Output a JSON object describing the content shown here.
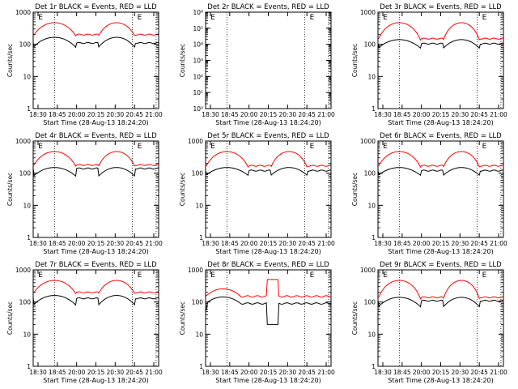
{
  "chart_data": [
    {
      "type": "line",
      "title": "Det 1r BLACK = Events, RED = LLD",
      "xlabel": "Start Time (28-Aug-13 18:24:20)",
      "ylabel": "Counts/sec",
      "ylim": [
        1,
        1000
      ],
      "ytick_labels": [
        "1",
        "10",
        "100",
        "1000"
      ],
      "xtick_labels": [
        "18:30",
        "18:45",
        "20:00",
        "20:15",
        "20:30",
        "20:45",
        "21:00"
      ],
      "flag_label": "E",
      "flags": [
        {
          "x": 0.04,
          "label": "E"
        },
        {
          "x": 0.83,
          "label": "E"
        }
      ],
      "dotted_lines_x": [
        0.17,
        0.79,
        0.98
      ],
      "series": [
        {
          "name": "Events",
          "color": "#000000",
          "pattern": "arc",
          "base": 110,
          "peak": 165,
          "low": 80
        },
        {
          "name": "LLD",
          "color": "#ff0000",
          "pattern": "arc",
          "base": 200,
          "peak": 470,
          "low": 180
        }
      ]
    },
    {
      "type": "line",
      "title": "Det 2r BLACK = Events, RED = LLD",
      "xlabel": "Start Time (28-Aug-13 18:24:20)",
      "ylabel": "Counts/sec",
      "ylim": [
        1,
        1000000
      ],
      "ytick_labels": [
        "10⁰",
        "10¹",
        "10²",
        "10³",
        "10⁴",
        "10⁵",
        "10⁶"
      ],
      "xtick_labels": [
        "18:30",
        "18:45",
        "20:00",
        "20:15",
        "20:30",
        "20:45",
        "21:00"
      ],
      "flag_label": "E",
      "flags": [
        {
          "x": 0.04,
          "label": "E"
        },
        {
          "x": 0.83,
          "label": "E"
        }
      ],
      "dotted_lines_x": [
        0.17,
        0.79,
        0.98
      ],
      "series": []
    },
    {
      "type": "line",
      "title": "Det 3r BLACK = Events, RED = LLD",
      "xlabel": "Start Time (28-Aug-13 18:24:20)",
      "ylabel": "Counts/sec",
      "ylim": [
        1,
        1000
      ],
      "ytick_labels": [
        "1",
        "10",
        "100",
        "1000"
      ],
      "xtick_labels": [
        "18:30",
        "18:45",
        "20:00",
        "20:15",
        "20:30",
        "20:45",
        "21:00"
      ],
      "flag_label": "E",
      "flags": [
        {
          "x": 0.04,
          "label": "E"
        },
        {
          "x": 0.83,
          "label": "E"
        }
      ],
      "dotted_lines_x": [
        0.17,
        0.79,
        0.98
      ],
      "series": [
        {
          "name": "Events",
          "color": "#000000",
          "pattern": "arc",
          "base": 105,
          "peak": 140,
          "low": 75
        },
        {
          "name": "LLD",
          "color": "#ff0000",
          "pattern": "arc",
          "base": 150,
          "peak": 470,
          "low": 130
        }
      ]
    },
    {
      "type": "line",
      "title": "Det 4r BLACK = Events, RED = LLD",
      "xlabel": "Start Time (28-Aug-13 18:24:20)",
      "ylabel": "Counts/sec",
      "ylim": [
        1,
        1000
      ],
      "ytick_labels": [
        "1",
        "10",
        "100",
        "1000"
      ],
      "xtick_labels": [
        "18:30",
        "18:45",
        "20:00",
        "20:15",
        "20:30",
        "20:45",
        "21:00"
      ],
      "flag_label": "E",
      "flags": [
        {
          "x": 0.04,
          "label": "E"
        },
        {
          "x": 0.83,
          "label": "E"
        }
      ],
      "dotted_lines_x": [
        0.17,
        0.79,
        0.98
      ],
      "series": [
        {
          "name": "Events",
          "color": "#000000",
          "pattern": "arc",
          "base": 140,
          "peak": 150,
          "low": 80
        },
        {
          "name": "LLD",
          "color": "#ff0000",
          "pattern": "arc",
          "base": 180,
          "peak": 470,
          "low": 160
        }
      ]
    },
    {
      "type": "line",
      "title": "Det 5r BLACK = Events, RED = LLD",
      "xlabel": "Start Time (28-Aug-13 18:24:20)",
      "ylabel": "Counts/sec",
      "ylim": [
        1,
        1000
      ],
      "ytick_labels": [
        "1",
        "10",
        "100",
        "1000"
      ],
      "xtick_labels": [
        "18:30",
        "18:45",
        "20:00",
        "20:15",
        "20:30",
        "20:45",
        "21:00"
      ],
      "flag_label": "E",
      "flags": [
        {
          "x": 0.04,
          "label": "E"
        },
        {
          "x": 0.83,
          "label": "E"
        }
      ],
      "dotted_lines_x": [
        0.17,
        0.79,
        0.98
      ],
      "series": [
        {
          "name": "Events",
          "color": "#000000",
          "pattern": "arc",
          "base": 120,
          "peak": 150,
          "low": 85
        },
        {
          "name": "LLD",
          "color": "#ff0000",
          "pattern": "arc",
          "base": 170,
          "peak": 470,
          "low": 150
        }
      ]
    },
    {
      "type": "line",
      "title": "Det 6r BLACK = Events, RED = LLD",
      "xlabel": "Start Time (28-Aug-13 18:24:20)",
      "ylabel": "Counts/sec",
      "ylim": [
        1,
        1000
      ],
      "ytick_labels": [
        "1",
        "10",
        "100",
        "1000"
      ],
      "xtick_labels": [
        "18:30",
        "18:45",
        "20:00",
        "20:15",
        "20:30",
        "20:45",
        "21:00"
      ],
      "flag_label": "E",
      "flags": [
        {
          "x": 0.04,
          "label": "E"
        },
        {
          "x": 0.83,
          "label": "E"
        }
      ],
      "dotted_lines_x": [
        0.17,
        0.79,
        0.98
      ],
      "series": [
        {
          "name": "Events",
          "color": "#000000",
          "pattern": "arc",
          "base": 120,
          "peak": 150,
          "low": 85
        },
        {
          "name": "LLD",
          "color": "#ff0000",
          "pattern": "arc",
          "base": 170,
          "peak": 470,
          "low": 150
        }
      ]
    },
    {
      "type": "line",
      "title": "Det 7r BLACK = Events, RED = LLD",
      "xlabel": "Start Time (28-Aug-13 18:24:20)",
      "ylabel": "Counts/sec",
      "ylim": [
        1,
        1000
      ],
      "ytick_labels": [
        "1",
        "10",
        "100",
        "1000"
      ],
      "xtick_labels": [
        "18:30",
        "18:45",
        "20:00",
        "20:15",
        "20:30",
        "20:45",
        "21:00"
      ],
      "flag_label": "E",
      "flags": [
        {
          "x": 0.04,
          "label": "E"
        },
        {
          "x": 0.83,
          "label": "E"
        }
      ],
      "dotted_lines_x": [
        0.17,
        0.79,
        0.98
      ],
      "series": [
        {
          "name": "Events",
          "color": "#000000",
          "pattern": "arc",
          "base": 130,
          "peak": 160,
          "low": 80
        },
        {
          "name": "LLD",
          "color": "#ff0000",
          "pattern": "arc",
          "base": 200,
          "peak": 470,
          "low": 180
        }
      ]
    },
    {
      "type": "line",
      "title": "Det 8r BLACK = Events, RED = LLD",
      "xlabel": "Start Time (28-Aug-13 18:24:20)",
      "ylabel": "Counts/sec",
      "ylim": [
        1,
        1000
      ],
      "ytick_labels": [
        "1",
        "10",
        "100",
        "1000"
      ],
      "xtick_labels": [
        "18:30",
        "18:45",
        "20:00",
        "20:15",
        "20:30",
        "20:45",
        "21:00"
      ],
      "flag_label": "E",
      "flags": [
        {
          "x": 0.04,
          "label": "E"
        },
        {
          "x": 0.83,
          "label": "E"
        }
      ],
      "dotted_lines_x": [
        0.17,
        0.79,
        0.98
      ],
      "series": [
        {
          "name": "Events",
          "color": "#000000",
          "pattern": "flat",
          "base": 90,
          "low": 50,
          "spike": 20
        },
        {
          "name": "LLD",
          "color": "#ff0000",
          "pattern": "flat",
          "base": 150,
          "peak": 330,
          "spike": 500
        }
      ]
    },
    {
      "type": "line",
      "title": "Det 9r BLACK = Events, RED = LLD",
      "xlabel": "Start Time (28-Aug-13 18:24:20)",
      "ylabel": "Counts/sec",
      "ylim": [
        1,
        1000
      ],
      "ytick_labels": [
        "1",
        "10",
        "100",
        "1000"
      ],
      "xtick_labels": [
        "18:30",
        "18:45",
        "20:00",
        "20:15",
        "20:30",
        "20:45",
        "21:00"
      ],
      "flag_label": "E",
      "flags": [
        {
          "x": 0.04,
          "label": "E"
        },
        {
          "x": 0.83,
          "label": "E"
        }
      ],
      "dotted_lines_x": [
        0.17,
        0.79,
        0.98
      ],
      "series": [
        {
          "name": "Events",
          "color": "#000000",
          "pattern": "arc",
          "base": 110,
          "peak": 140,
          "low": 70
        },
        {
          "name": "LLD",
          "color": "#ff0000",
          "pattern": "arc",
          "base": 140,
          "peak": 470,
          "low": 120
        }
      ]
    }
  ]
}
